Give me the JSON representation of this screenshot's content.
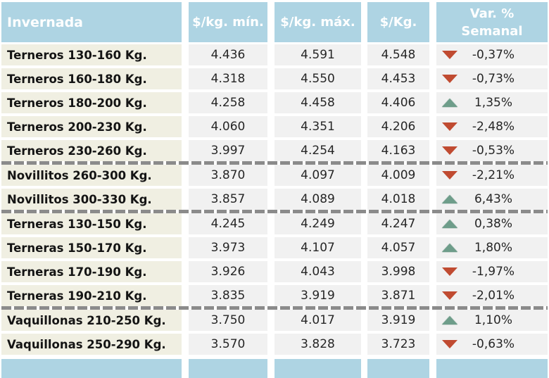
{
  "colors": {
    "header_bg": "#aed4e3",
    "header_text": "#ffffff",
    "label_bg": "#f0efe2",
    "value_bg": "#f1f1f1",
    "label_text": "#141414",
    "value_text": "#262626",
    "up": "#6e9d8a",
    "down": "#c04b31",
    "separator": "#8b8b8b"
  },
  "chart_data": {
    "type": "table",
    "title": "Invernada",
    "columns": [
      "Invernada",
      "$/kg. mín.",
      "$/kg. máx.",
      "$/Kg.",
      "Var. % Semanal"
    ],
    "headers": {
      "category": "Invernada",
      "min": "$/kg. mín.",
      "max": "$/kg. máx.",
      "avg": "$/Kg.",
      "variation_line1": "Var. %",
      "variation_line2": "Semanal"
    },
    "rows": [
      {
        "label": "Terneros 130-160 Kg.",
        "min": "4.436",
        "max": "4.591",
        "avg": "4.548",
        "trend": "down",
        "variation": "-0,37%",
        "separator_after": false
      },
      {
        "label": "Terneros 160-180 Kg.",
        "min": "4.318",
        "max": "4.550",
        "avg": "4.453",
        "trend": "down",
        "variation": "-0,73%",
        "separator_after": false
      },
      {
        "label": "Terneros 180-200 Kg.",
        "min": "4.258",
        "max": "4.458",
        "avg": "4.406",
        "trend": "up",
        "variation": "1,35%",
        "separator_after": false
      },
      {
        "label": "Terneros 200-230 Kg.",
        "min": "4.060",
        "max": "4.351",
        "avg": "4.206",
        "trend": "down",
        "variation": "-2,48%",
        "separator_after": false
      },
      {
        "label": "Terneros 230-260 Kg.",
        "min": "3.997",
        "max": "4.254",
        "avg": "4.163",
        "trend": "down",
        "variation": "-0,53%",
        "separator_after": true
      },
      {
        "label": "Novillitos 260-300 Kg.",
        "min": "3.870",
        "max": "4.097",
        "avg": "4.009",
        "trend": "down",
        "variation": "-2,21%",
        "separator_after": false
      },
      {
        "label": "Novillitos 300-330 Kg.",
        "min": "3.857",
        "max": "4.089",
        "avg": "4.018",
        "trend": "up",
        "variation": "6,43%",
        "separator_after": true
      },
      {
        "label": "Terneras 130-150 Kg.",
        "min": "4.245",
        "max": "4.249",
        "avg": "4.247",
        "trend": "up",
        "variation": "0,38%",
        "separator_after": false
      },
      {
        "label": "Terneras 150-170 Kg.",
        "min": "3.973",
        "max": "4.107",
        "avg": "4.057",
        "trend": "up",
        "variation": "1,80%",
        "separator_after": false
      },
      {
        "label": "Terneras 170-190 Kg.",
        "min": "3.926",
        "max": "4.043",
        "avg": "3.998",
        "trend": "down",
        "variation": "-1,97%",
        "separator_after": false
      },
      {
        "label": "Terneras 190-210 Kg.",
        "min": "3.835",
        "max": "3.919",
        "avg": "3.871",
        "trend": "down",
        "variation": "-2,01%",
        "separator_after": true
      },
      {
        "label": "Vaquillonas 210-250 Kg.",
        "min": "3.750",
        "max": "4.017",
        "avg": "3.919",
        "trend": "up",
        "variation": "1,10%",
        "separator_after": false
      },
      {
        "label": "Vaquillonas 250-290 Kg.",
        "min": "3.570",
        "max": "3.828",
        "avg": "3.723",
        "trend": "down",
        "variation": "-0,63%",
        "separator_after": false
      }
    ]
  }
}
